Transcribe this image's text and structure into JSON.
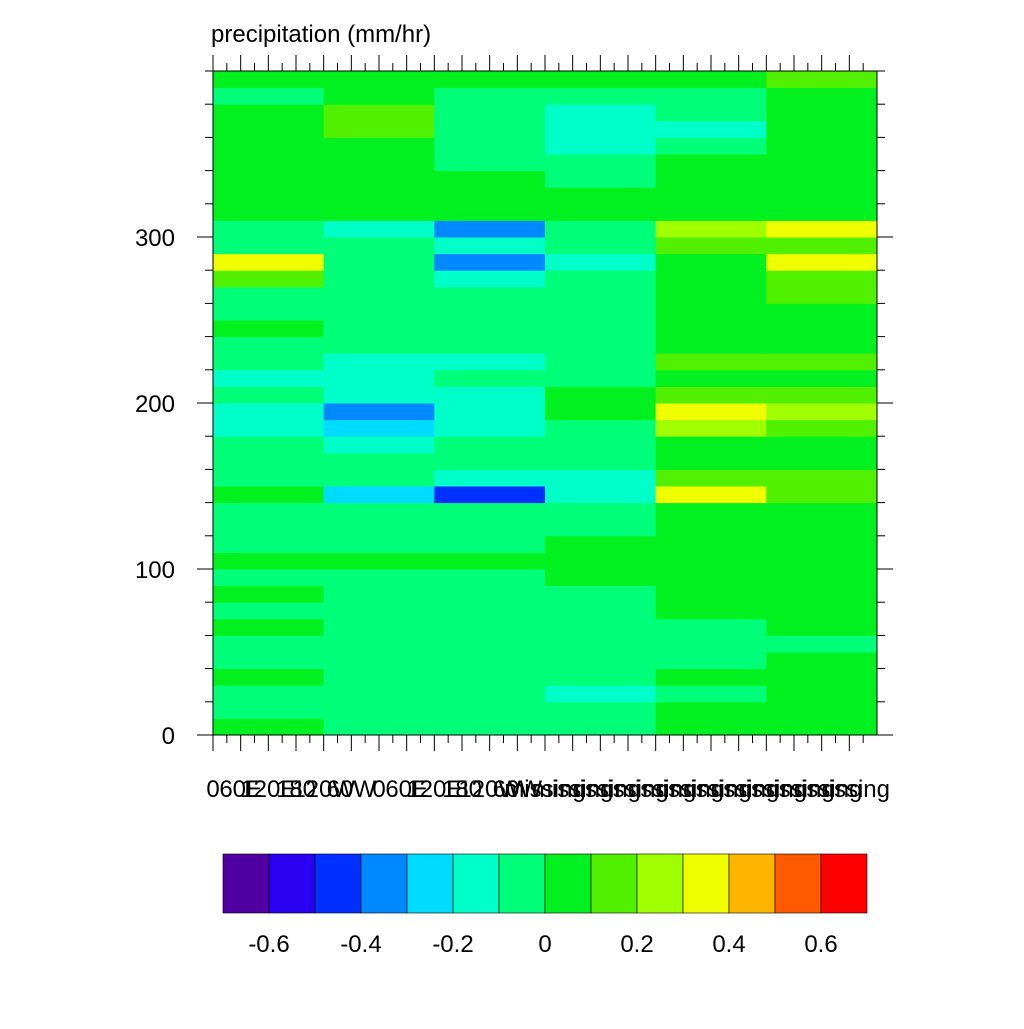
{
  "chart_data": {
    "type": "contour",
    "title": "precipitation (mm/hr)",
    "xlim": [
      0,
      24
    ],
    "xticks": [
      {
        "value": 0,
        "label": "0"
      },
      {
        "value": 1,
        "label": "60E"
      },
      {
        "value": 2,
        "label": "120E"
      },
      {
        "value": 3,
        "label": "180"
      },
      {
        "value": 4,
        "label": "120W"
      },
      {
        "value": 5,
        "label": "60W"
      },
      {
        "value": 6,
        "label": "0"
      },
      {
        "value": 7,
        "label": "60E"
      },
      {
        "value": 8,
        "label": "120E"
      },
      {
        "value": 9,
        "label": "180"
      },
      {
        "value": 10,
        "label": "120W"
      },
      {
        "value": 11,
        "label": "60W"
      },
      {
        "value": 12,
        "label": "missing"
      },
      {
        "value": 13,
        "label": "missing"
      },
      {
        "value": 14,
        "label": "missing"
      },
      {
        "value": 15,
        "label": "missing"
      },
      {
        "value": 16,
        "label": "missing"
      },
      {
        "value": 17,
        "label": "missing"
      },
      {
        "value": 18,
        "label": "missing"
      },
      {
        "value": 19,
        "label": "missing"
      },
      {
        "value": 20,
        "label": "missing"
      },
      {
        "value": 21,
        "label": "missing"
      },
      {
        "value": 22,
        "label": "missing"
      },
      {
        "value": 23,
        "label": "missing"
      }
    ],
    "ylim": [
      0,
      400
    ],
    "yticks": [
      0,
      100,
      200,
      300
    ],
    "xbins": [
      0,
      4,
      8,
      12,
      16,
      20,
      24
    ],
    "ybins": [
      0,
      10,
      20,
      30,
      40,
      50,
      60,
      70,
      80,
      90,
      100,
      110,
      120,
      130,
      140,
      150,
      160,
      170,
      180,
      190,
      200,
      210,
      220,
      230,
      240,
      250,
      260,
      270,
      280,
      290,
      300,
      310,
      320,
      330,
      340,
      350,
      360,
      370,
      380,
      390,
      400
    ],
    "z": [
      [
        0.05,
        -0.05,
        -0.05,
        -0.05,
        0.05,
        0.05
      ],
      [
        -0.05,
        -0.05,
        -0.05,
        -0.05,
        0.05,
        0.05
      ],
      [
        -0.05,
        -0.05,
        -0.05,
        -0.15,
        -0.05,
        0.05
      ],
      [
        0.05,
        -0.05,
        -0.05,
        -0.05,
        0.05,
        0.05
      ],
      [
        -0.05,
        -0.05,
        -0.05,
        -0.05,
        -0.05,
        0.05
      ],
      [
        -0.05,
        -0.05,
        -0.05,
        -0.05,
        -0.05,
        -0.05
      ],
      [
        0.05,
        -0.05,
        -0.05,
        -0.05,
        -0.05,
        0.05
      ],
      [
        -0.05,
        -0.05,
        -0.05,
        -0.05,
        0.05,
        0.05
      ],
      [
        0.05,
        -0.05,
        -0.05,
        -0.05,
        0.05,
        0.05
      ],
      [
        -0.05,
        -0.05,
        -0.05,
        0.05,
        0.05,
        0.05
      ],
      [
        0.05,
        0.05,
        0.05,
        0.05,
        0.05,
        0.05
      ],
      [
        -0.05,
        -0.05,
        -0.05,
        0.05,
        0.05,
        0.05
      ],
      [
        -0.05,
        -0.05,
        -0.05,
        -0.05,
        0.05,
        0.05
      ],
      [
        -0.05,
        -0.05,
        -0.05,
        -0.05,
        0.05,
        0.05
      ],
      [
        0.05,
        -0.25,
        -0.45,
        -0.15,
        0.35,
        0.15
      ],
      [
        -0.05,
        -0.05,
        -0.15,
        -0.15,
        0.15,
        0.15
      ],
      [
        -0.05,
        -0.05,
        -0.05,
        -0.05,
        0.05,
        0.05
      ],
      [
        -0.05,
        -0.15,
        -0.05,
        -0.05,
        0.05,
        0.05
      ],
      [
        -0.15,
        -0.25,
        -0.15,
        -0.05,
        0.25,
        0.15
      ],
      [
        -0.15,
        -0.35,
        -0.15,
        0.05,
        0.35,
        0.25
      ],
      [
        -0.05,
        -0.15,
        -0.15,
        0.05,
        0.15,
        0.15
      ],
      [
        -0.15,
        -0.15,
        -0.05,
        -0.05,
        0.05,
        0.05
      ],
      [
        -0.05,
        -0.15,
        -0.15,
        -0.05,
        0.15,
        0.15
      ],
      [
        -0.05,
        -0.05,
        -0.05,
        -0.05,
        0.05,
        0.05
      ],
      [
        0.05,
        -0.05,
        -0.05,
        -0.05,
        0.05,
        0.05
      ],
      [
        -0.05,
        -0.05,
        -0.05,
        -0.05,
        0.05,
        0.05
      ],
      [
        -0.05,
        -0.05,
        -0.05,
        -0.05,
        0.05,
        0.15
      ],
      [
        0.15,
        -0.05,
        -0.15,
        -0.05,
        0.05,
        0.15
      ],
      [
        0.35,
        -0.05,
        -0.35,
        -0.15,
        0.05,
        0.35
      ],
      [
        -0.05,
        -0.05,
        -0.15,
        -0.05,
        0.15,
        0.15
      ],
      [
        -0.05,
        -0.15,
        -0.35,
        -0.05,
        0.25,
        0.35
      ],
      [
        0.05,
        0.05,
        0.05,
        0.05,
        0.05,
        0.05
      ],
      [
        0.05,
        0.05,
        0.05,
        0.05,
        0.05,
        0.05
      ],
      [
        0.05,
        0.05,
        0.05,
        -0.05,
        0.05,
        0.05
      ],
      [
        0.05,
        0.05,
        -0.05,
        -0.05,
        0.05,
        0.05
      ],
      [
        0.05,
        0.05,
        -0.05,
        -0.15,
        -0.05,
        0.05
      ],
      [
        0.05,
        0.15,
        -0.05,
        -0.15,
        -0.15,
        0.05
      ],
      [
        0.05,
        0.15,
        -0.05,
        -0.15,
        -0.05,
        0.05
      ],
      [
        -0.05,
        0.05,
        -0.05,
        -0.05,
        -0.05,
        0.05
      ],
      [
        0.05,
        0.05,
        0.05,
        0.05,
        0.05,
        0.15
      ]
    ],
    "levels": [
      -0.6,
      -0.5,
      -0.4,
      -0.3,
      -0.2,
      -0.1,
      0,
      0.1,
      0.2,
      0.3,
      0.4,
      0.5,
      0.6
    ],
    "colors": [
      "#5000a0",
      "#2a00f0",
      "#0030ff",
      "#0088ff",
      "#00dcff",
      "#00ffc8",
      "#00ff78",
      "#00f020",
      "#50f000",
      "#a0ff00",
      "#f0ff00",
      "#ffb400",
      "#ff5a00",
      "#ff0000"
    ],
    "colorbar_ticks": [
      -0.6,
      -0.4,
      -0.2,
      0,
      0.2,
      0.4,
      0.6
    ]
  }
}
